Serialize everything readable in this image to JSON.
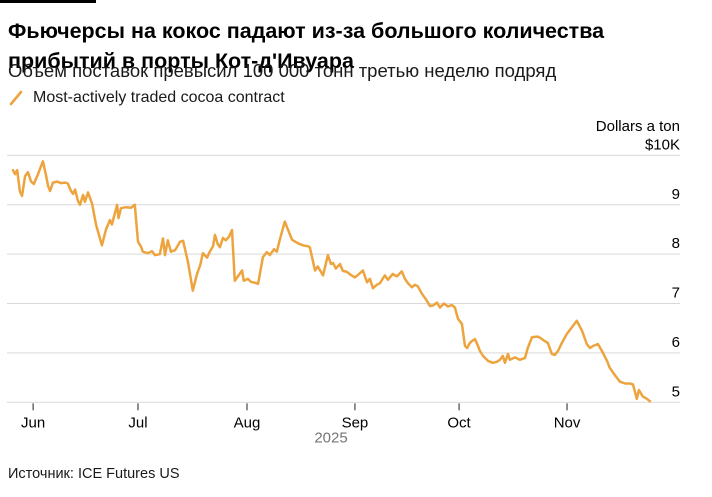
{
  "header": {
    "title": "Фьючерсы на кокос падают из-за большого количества прибытий в порты Кот-д'Ивуара",
    "subtitle": "Объем поставок превысил 100 000 тонн третью неделю подряд"
  },
  "legend": {
    "label": "Most-actively traded cocoa contract",
    "marker_color": "#EDA43E"
  },
  "footer": {
    "source": "Источник: ICE Futures US"
  },
  "chart_data": {
    "type": "line",
    "title": "Most-actively traded cocoa contract",
    "unit_label": "Dollars a ton",
    "unit_scale_label": "$10K",
    "x_unit": "days since 2025-05-26",
    "x_range": [
      0,
      184
    ],
    "y_range": [
      5,
      10
    ],
    "grid": true,
    "line_color": "#EDA43E",
    "grid_color": "#d9d9d9",
    "tick_color": "#444444",
    "year_color": "#757575",
    "label_color": "#000000",
    "x_axis_year": "2025",
    "y_ticks": [
      {
        "v": 10,
        "label": "$10K"
      },
      {
        "v": 9,
        "label": "9"
      },
      {
        "v": 8,
        "label": "8"
      },
      {
        "v": 7,
        "label": "7"
      },
      {
        "v": 6,
        "label": "6"
      },
      {
        "v": 5,
        "label": "5"
      }
    ],
    "x_ticks": [
      {
        "t": 5.8,
        "label": "Jun"
      },
      {
        "t": 36.0,
        "label": "Jul"
      },
      {
        "t": 67.4,
        "label": "Aug"
      },
      {
        "t": 98.5,
        "label": "Sep"
      },
      {
        "t": 128.5,
        "label": "Oct"
      },
      {
        "t": 159.6,
        "label": "Nov"
      }
    ],
    "points": [
      [
        0,
        9.7
      ],
      [
        0.6,
        9.62
      ],
      [
        1.2,
        9.7
      ],
      [
        2,
        9.27
      ],
      [
        2.6,
        9.18
      ],
      [
        3.5,
        9.58
      ],
      [
        4.3,
        9.66
      ],
      [
        5.2,
        9.47
      ],
      [
        6,
        9.42
      ],
      [
        7.2,
        9.62
      ],
      [
        8.6,
        9.88
      ],
      [
        9.5,
        9.6
      ],
      [
        10.1,
        9.38
      ],
      [
        10.7,
        9.28
      ],
      [
        11.5,
        9.45
      ],
      [
        12.7,
        9.47
      ],
      [
        13.8,
        9.44
      ],
      [
        15,
        9.45
      ],
      [
        15.8,
        9.43
      ],
      [
        16.7,
        9.28
      ],
      [
        17.3,
        9.22
      ],
      [
        17.9,
        9.31
      ],
      [
        18.7,
        9.08
      ],
      [
        19.3,
        9.0
      ],
      [
        20.2,
        9.2
      ],
      [
        20.7,
        9.06
      ],
      [
        21.6,
        9.25
      ],
      [
        22.8,
        9.02
      ],
      [
        23.9,
        8.6
      ],
      [
        25.6,
        8.18
      ],
      [
        26.8,
        8.5
      ],
      [
        27.9,
        8.69
      ],
      [
        28.5,
        8.6
      ],
      [
        30,
        9.0
      ],
      [
        30.4,
        8.73
      ],
      [
        31.1,
        8.93
      ],
      [
        32.5,
        8.95
      ],
      [
        34,
        8.94
      ],
      [
        35.1,
        9.0
      ],
      [
        36,
        8.25
      ],
      [
        36.9,
        8.15
      ],
      [
        37.4,
        8.05
      ],
      [
        38.9,
        8.02
      ],
      [
        40,
        8.06
      ],
      [
        40.9,
        7.98
      ],
      [
        42.3,
        8.0
      ],
      [
        43.2,
        8.32
      ],
      [
        43.8,
        7.98
      ],
      [
        44.6,
        8.28
      ],
      [
        45.5,
        8.05
      ],
      [
        46.7,
        8.08
      ],
      [
        48.1,
        8.25
      ],
      [
        49,
        8.27
      ],
      [
        50.4,
        7.84
      ],
      [
        51.8,
        7.26
      ],
      [
        53,
        7.6
      ],
      [
        53.9,
        7.77
      ],
      [
        54.7,
        8.02
      ],
      [
        55.9,
        7.93
      ],
      [
        56.7,
        8.05
      ],
      [
        57.6,
        8.16
      ],
      [
        58.2,
        8.39
      ],
      [
        59,
        8.2
      ],
      [
        59.6,
        8.14
      ],
      [
        60.5,
        8.33
      ],
      [
        61.3,
        8.28
      ],
      [
        62.2,
        8.35
      ],
      [
        63.1,
        8.49
      ],
      [
        63.9,
        7.46
      ],
      [
        64.8,
        7.55
      ],
      [
        66,
        7.67
      ],
      [
        66.5,
        7.46
      ],
      [
        67.7,
        7.5
      ],
      [
        68.5,
        7.44
      ],
      [
        69.7,
        7.42
      ],
      [
        70.6,
        7.4
      ],
      [
        72,
        7.94
      ],
      [
        73.1,
        8.04
      ],
      [
        74,
        7.98
      ],
      [
        75.2,
        8.1
      ],
      [
        76,
        8.05
      ],
      [
        76.9,
        8.3
      ],
      [
        78.3,
        8.66
      ],
      [
        79.2,
        8.5
      ],
      [
        80.4,
        8.29
      ],
      [
        82.1,
        8.22
      ],
      [
        83.5,
        8.18
      ],
      [
        85,
        8.16
      ],
      [
        85.5,
        8.14
      ],
      [
        87,
        7.67
      ],
      [
        87.8,
        7.75
      ],
      [
        89.3,
        7.57
      ],
      [
        90.7,
        7.98
      ],
      [
        91.6,
        7.8
      ],
      [
        92.2,
        7.82
      ],
      [
        93,
        7.71
      ],
      [
        94.2,
        7.8
      ],
      [
        95,
        7.66
      ],
      [
        96.2,
        7.64
      ],
      [
        97.3,
        7.58
      ],
      [
        98.5,
        7.53
      ],
      [
        99.7,
        7.6
      ],
      [
        100.8,
        7.67
      ],
      [
        102,
        7.43
      ],
      [
        102.8,
        7.5
      ],
      [
        103.7,
        7.31
      ],
      [
        104.8,
        7.38
      ],
      [
        105.7,
        7.41
      ],
      [
        107.1,
        7.57
      ],
      [
        108,
        7.48
      ],
      [
        109.4,
        7.6
      ],
      [
        110.6,
        7.55
      ],
      [
        112,
        7.65
      ],
      [
        112.9,
        7.5
      ],
      [
        113.8,
        7.41
      ],
      [
        114.9,
        7.33
      ],
      [
        115.8,
        7.38
      ],
      [
        116.6,
        7.35
      ],
      [
        117.8,
        7.2
      ],
      [
        119.2,
        7.06
      ],
      [
        120.1,
        6.95
      ],
      [
        121,
        6.96
      ],
      [
        122.1,
        7.02
      ],
      [
        123,
        6.92
      ],
      [
        124.1,
        7.0
      ],
      [
        125.3,
        6.94
      ],
      [
        126.4,
        6.97
      ],
      [
        127.3,
        6.92
      ],
      [
        128.2,
        6.69
      ],
      [
        129.3,
        6.59
      ],
      [
        130.2,
        6.14
      ],
      [
        130.8,
        6.1
      ],
      [
        131.6,
        6.2
      ],
      [
        132.2,
        6.24
      ],
      [
        133.1,
        6.28
      ],
      [
        133.9,
        6.15
      ],
      [
        134.5,
        6.04
      ],
      [
        135.4,
        5.94
      ],
      [
        136.8,
        5.84
      ],
      [
        138.2,
        5.8
      ],
      [
        139.4,
        5.82
      ],
      [
        140.3,
        5.86
      ],
      [
        141.1,
        5.94
      ],
      [
        141.7,
        5.8
      ],
      [
        142.6,
        5.98
      ],
      [
        143.1,
        5.86
      ],
      [
        144.6,
        5.91
      ],
      [
        146,
        5.86
      ],
      [
        147.5,
        5.9
      ],
      [
        148.3,
        6.1
      ],
      [
        149.5,
        6.32
      ],
      [
        151.2,
        6.33
      ],
      [
        152.4,
        6.28
      ],
      [
        153.2,
        6.24
      ],
      [
        154.1,
        6.2
      ],
      [
        155.2,
        5.98
      ],
      [
        156.1,
        5.96
      ],
      [
        157,
        6.04
      ],
      [
        158.1,
        6.2
      ],
      [
        159.6,
        6.39
      ],
      [
        161,
        6.52
      ],
      [
        162.4,
        6.65
      ],
      [
        163.9,
        6.45
      ],
      [
        165.3,
        6.18
      ],
      [
        166.2,
        6.1
      ],
      [
        167.1,
        6.14
      ],
      [
        168.5,
        6.18
      ],
      [
        169.6,
        6.05
      ],
      [
        171.1,
        5.84
      ],
      [
        171.9,
        5.7
      ],
      [
        173.4,
        5.55
      ],
      [
        174.8,
        5.42
      ],
      [
        176.3,
        5.38
      ],
      [
        177.7,
        5.38
      ],
      [
        178.6,
        5.36
      ],
      [
        179.7,
        5.07
      ],
      [
        180.3,
        5.25
      ],
      [
        181.4,
        5.12
      ],
      [
        182.6,
        5.07
      ],
      [
        183.5,
        5.02
      ]
    ]
  }
}
